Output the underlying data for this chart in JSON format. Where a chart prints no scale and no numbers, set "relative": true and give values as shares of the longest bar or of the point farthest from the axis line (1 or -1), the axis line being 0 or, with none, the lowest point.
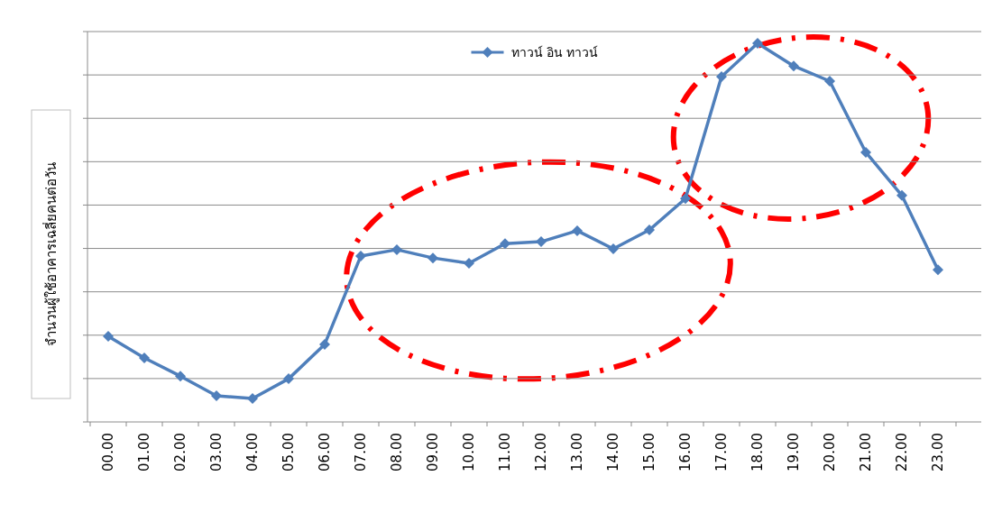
{
  "chart_data": {
    "type": "line",
    "relative": true,
    "ylabel": "จำนวนผู้ใช้อาคารเฉลี่ยคนต่อวัน",
    "categories": [
      "00.00",
      "01.00",
      "02.00",
      "03.00",
      "04.00",
      "05.00",
      "06.00",
      "07.00",
      "08.00",
      "09.00",
      "10.00",
      "11.00",
      "12.00",
      "13.00",
      "14.00",
      "15.00",
      "16.00",
      "17.00",
      "18.00",
      "19.00",
      "20.00",
      "21.00",
      "22.00",
      "23.00"
    ],
    "series": [
      {
        "name": "ทาวน์ อิน ทาวน์",
        "color": "#4f7fbb",
        "values": [
          0.226,
          0.169,
          0.121,
          0.069,
          0.062,
          0.114,
          0.205,
          0.438,
          0.455,
          0.433,
          0.419,
          0.471,
          0.476,
          0.505,
          0.457,
          0.507,
          0.59,
          0.912,
          1,
          0.94,
          0.9,
          0.712,
          0.598,
          0.402
        ]
      }
    ],
    "grid": "y",
    "legend": "top",
    "marker": "diamond",
    "line_style": "solid"
  }
}
